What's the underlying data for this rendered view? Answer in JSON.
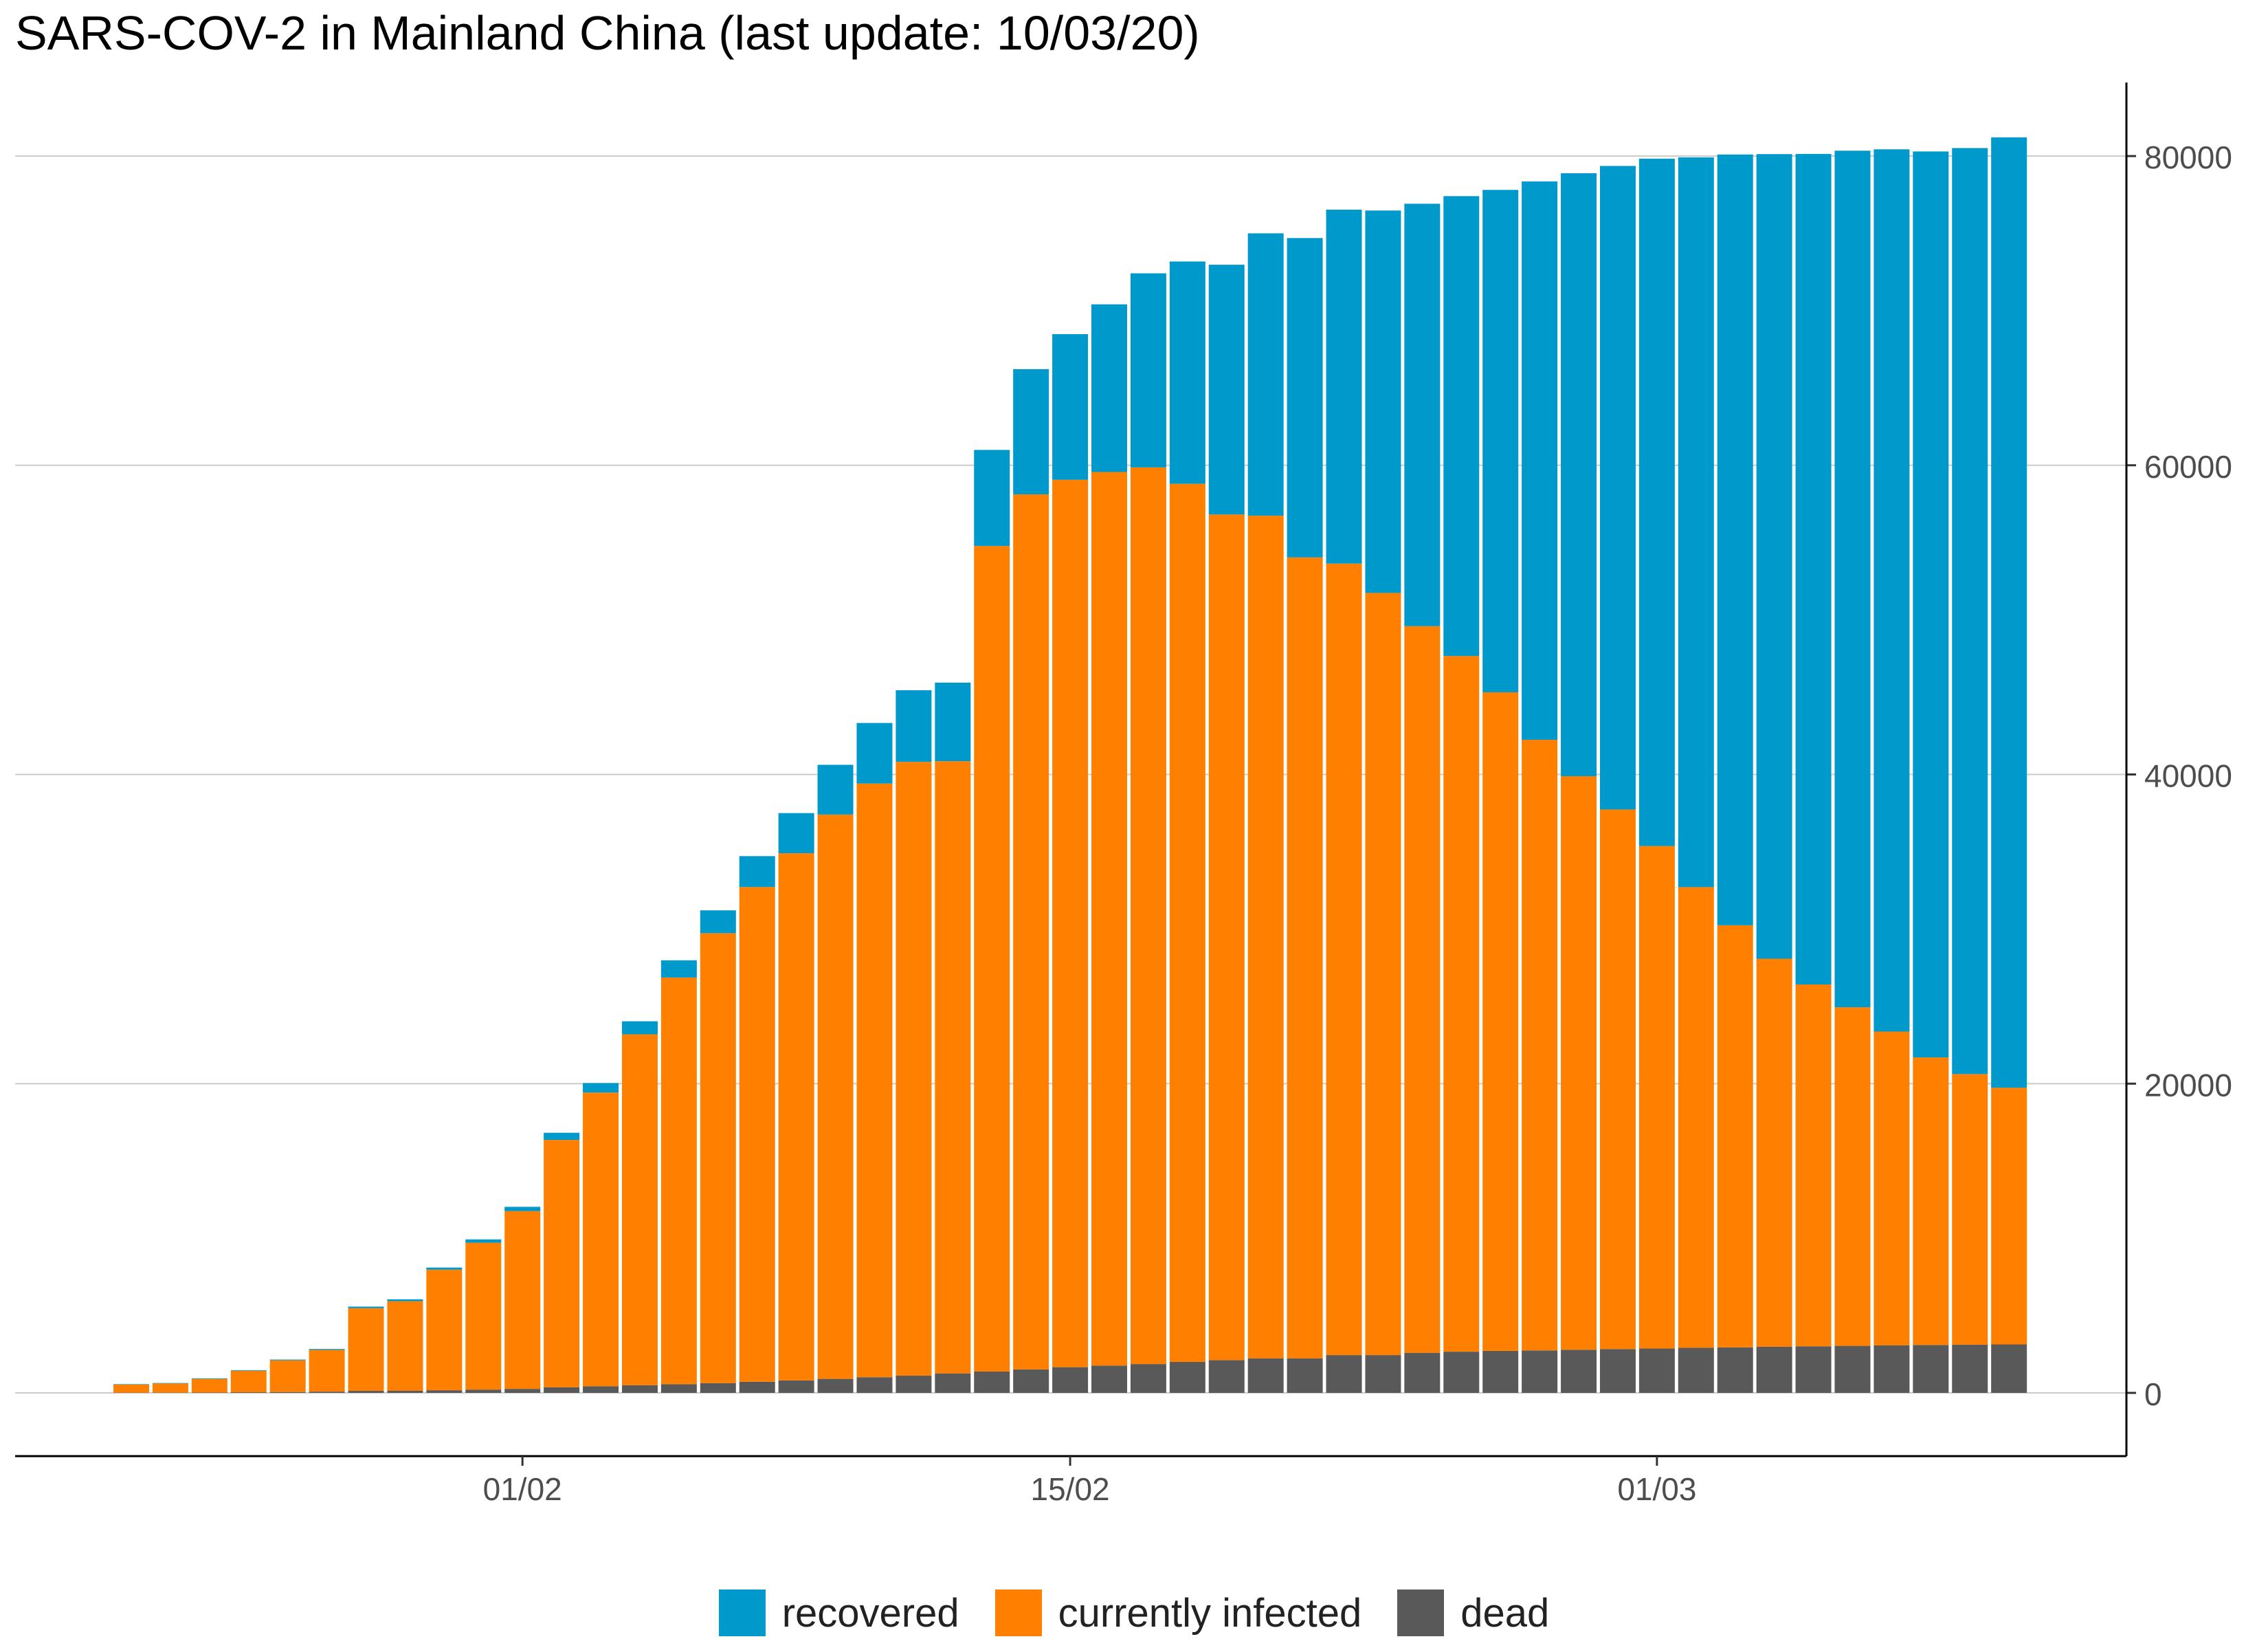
{
  "chart_data": {
    "type": "bar",
    "stacked": true,
    "title": "SARS-COV-2 in Mainland China (last update: 10/03/20)",
    "xlabel": "",
    "ylabel": "",
    "ylim": [
      -10000,
      84500
    ],
    "y_ticks": [
      0,
      20000,
      40000,
      60000,
      80000
    ],
    "y_axis_position": "right",
    "x_tick_labels": [
      {
        "label": "01/02",
        "date": "2020-02-01"
      },
      {
        "label": "15/02",
        "date": "2020-02-15"
      },
      {
        "label": "01/03",
        "date": "2020-03-01"
      }
    ],
    "grid": "horizontal major",
    "legend_position": "bottom",
    "categories": [
      "2020-01-22",
      "2020-01-23",
      "2020-01-24",
      "2020-01-25",
      "2020-01-26",
      "2020-01-27",
      "2020-01-28",
      "2020-01-29",
      "2020-01-30",
      "2020-01-31",
      "2020-02-01",
      "2020-02-02",
      "2020-02-03",
      "2020-02-04",
      "2020-02-05",
      "2020-02-06",
      "2020-02-07",
      "2020-02-08",
      "2020-02-09",
      "2020-02-10",
      "2020-02-11",
      "2020-02-12",
      "2020-02-13",
      "2020-02-14",
      "2020-02-15",
      "2020-02-16",
      "2020-02-17",
      "2020-02-18",
      "2020-02-19",
      "2020-02-20",
      "2020-02-21",
      "2020-02-22",
      "2020-02-23",
      "2020-02-24",
      "2020-02-25",
      "2020-02-26",
      "2020-02-27",
      "2020-02-28",
      "2020-02-29",
      "2020-03-01",
      "2020-03-02",
      "2020-03-03",
      "2020-03-04",
      "2020-03-05",
      "2020-03-06",
      "2020-03-07",
      "2020-03-08",
      "2020-03-09",
      "2020-03-10"
    ],
    "series": [
      {
        "name": "dead",
        "color": "#595959",
        "values": [
          17,
          18,
          26,
          42,
          56,
          82,
          131,
          133,
          171,
          213,
          259,
          362,
          426,
          492,
          564,
          634,
          719,
          806,
          906,
          1013,
          1113,
          1259,
          1380,
          1520,
          1662,
          1765,
          1863,
          2003,
          2116,
          2238,
          2238,
          2443,
          2443,
          2593,
          2663,
          2715,
          2744,
          2788,
          2835,
          2870,
          2912,
          2945,
          2981,
          3013,
          3042,
          3070,
          3097,
          3120,
          3136
        ]
      },
      {
        "name": "currently infected",
        "color": "#FF8000",
        "values": [
          520,
          590,
          880,
          1380,
          2050,
          2700,
          5350,
          5800,
          7800,
          9500,
          11500,
          16000,
          19000,
          22700,
          26300,
          29100,
          32000,
          34100,
          36500,
          38400,
          39700,
          39600,
          53400,
          56600,
          57400,
          57800,
          58000,
          56800,
          54700,
          54500,
          51800,
          51200,
          49300,
          47000,
          45000,
          42600,
          39500,
          37100,
          34900,
          32500,
          29800,
          27300,
          25100,
          23400,
          21900,
          20300,
          18600,
          17500,
          16600
        ]
      },
      {
        "name": "recovered",
        "color": "#0099CC",
        "values": [
          28,
          30,
          36,
          39,
          49,
          58,
          101,
          120,
          135,
          214,
          275,
          463,
          614,
          843,
          1115,
          1477,
          1999,
          2595,
          3218,
          3918,
          4636,
          5082,
          6213,
          8096,
          9419,
          10844,
          12552,
          14376,
          16155,
          18264,
          20659,
          22888,
          24734,
          27323,
          29745,
          32495,
          36117,
          39002,
          41625,
          44462,
          47204,
          49856,
          52045,
          53726,
          55404,
          57065,
          58600,
          59897,
          61475
        ]
      }
    ]
  }
}
